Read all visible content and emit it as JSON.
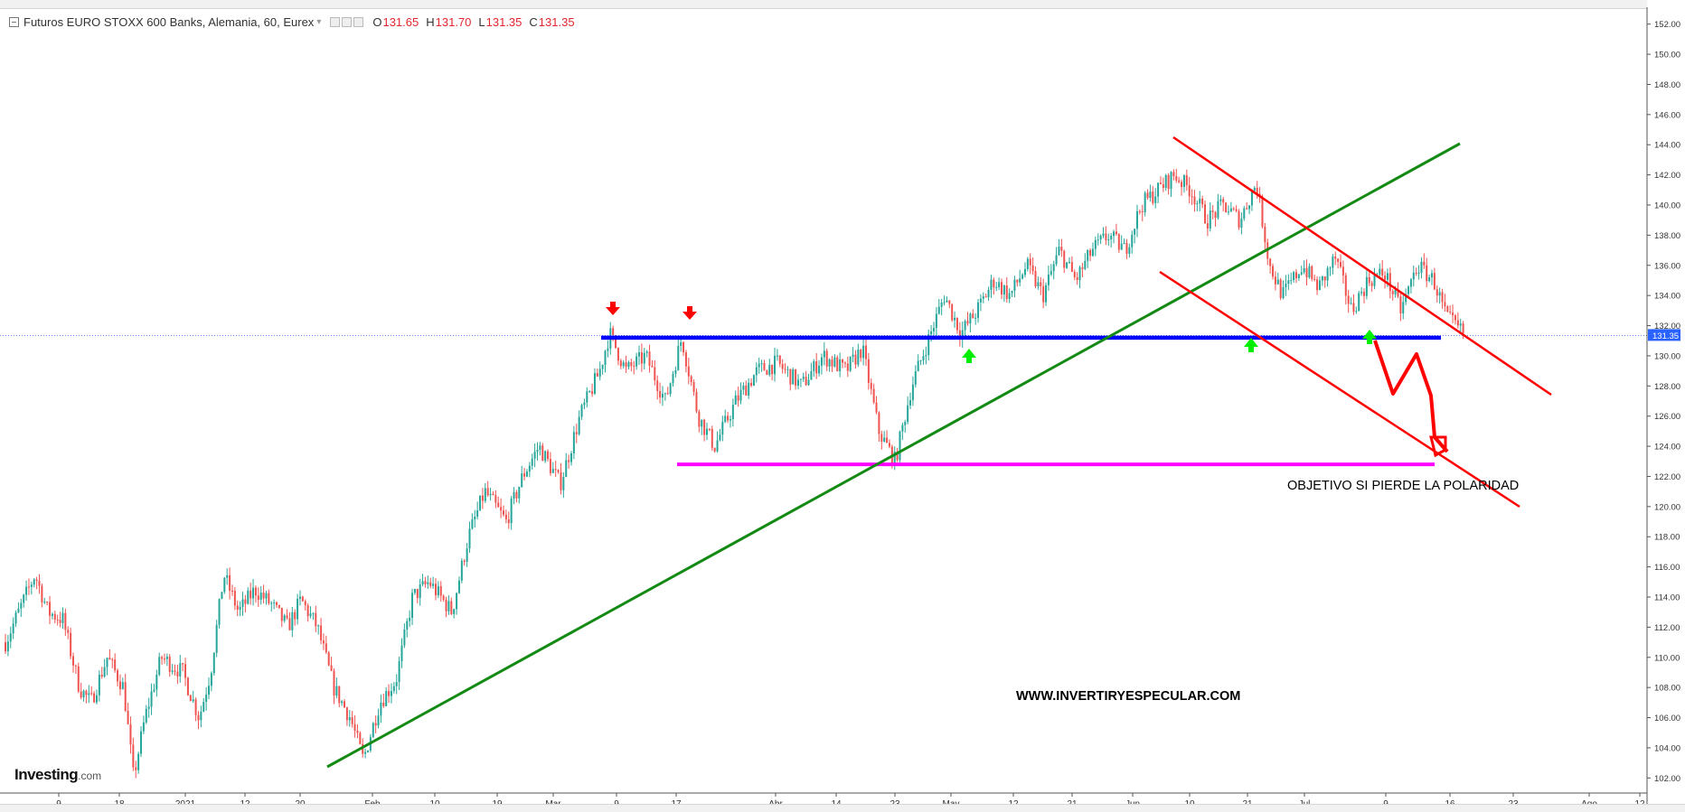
{
  "legend": {
    "title": "Futuros EURO STOXX 600 Banks, Alemania, 60, Eurex",
    "o_key": "O",
    "o_val": "131.65",
    "h_key": "H",
    "h_val": "131.70",
    "l_key": "L",
    "l_val": "131.35",
    "c_key": "C",
    "c_val": "131.35"
  },
  "logo": {
    "main": "Investing",
    "suffix": ".com"
  },
  "annotations": {
    "objective": "OBJETIVO SI PIERDE LA POLARIDAD",
    "website": "WWW.INVERTIRYESPECULAR.COM"
  },
  "colors": {
    "up_candle": "#26a69a",
    "down_candle": "#ef5350",
    "support_line": "#0000ff",
    "target_line": "#ff00ff",
    "trend_line": "#138a13",
    "channel_lines": "#ff0000",
    "price_label_bg": "#2962ff",
    "arrow_down": "#ff0000",
    "arrow_up": "#00ee00"
  },
  "chart_data": {
    "type": "candlestick",
    "title": "Futuros EURO STOXX 600 Banks, Alemania, 60, Eurex",
    "current_price": 131.35,
    "current_price_label": "131.35",
    "ylim": [
      101,
      153
    ],
    "y_ticks": [
      102,
      104,
      106,
      108,
      110,
      112,
      114,
      116,
      118,
      120,
      122,
      124,
      126,
      128,
      130,
      132,
      134,
      136,
      138,
      140,
      142,
      144,
      146,
      148,
      150,
      152
    ],
    "y_tick_labels": [
      "102.00",
      "104.00",
      "106.00",
      "108.00",
      "110.00",
      "112.00",
      "114.00",
      "116.00",
      "118.00",
      "120.00",
      "122.00",
      "124.00",
      "126.00",
      "128.00",
      "130.00",
      "132.00",
      "134.00",
      "136.00",
      "138.00",
      "140.00",
      "142.00",
      "144.00",
      "146.00",
      "148.00",
      "150.00",
      "152.00"
    ],
    "x_tick_labels": [
      "9",
      "18",
      "2021",
      "12",
      "20",
      "Feb",
      "10",
      "19",
      "Mar",
      "9",
      "17",
      "Abr",
      "14",
      "23",
      "May",
      "12",
      "21",
      "Jun",
      "10",
      "21",
      "Jul",
      "9",
      "16",
      "23",
      "Ago",
      "12"
    ],
    "price_path": [
      [
        0,
        111
      ],
      [
        0.008,
        113
      ],
      [
        0.018,
        115.5
      ],
      [
        0.026,
        113
      ],
      [
        0.035,
        112.5
      ],
      [
        0.045,
        108
      ],
      [
        0.052,
        107
      ],
      [
        0.062,
        110
      ],
      [
        0.072,
        108
      ],
      [
        0.078,
        102
      ],
      [
        0.085,
        106
      ],
      [
        0.095,
        110
      ],
      [
        0.108,
        109
      ],
      [
        0.118,
        106
      ],
      [
        0.125,
        109
      ],
      [
        0.133,
        115.5
      ],
      [
        0.142,
        113
      ],
      [
        0.152,
        114.5
      ],
      [
        0.162,
        113.5
      ],
      [
        0.172,
        112
      ],
      [
        0.18,
        113.8
      ],
      [
        0.19,
        112
      ],
      [
        0.2,
        108
      ],
      [
        0.21,
        106
      ],
      [
        0.218,
        103.2
      ],
      [
        0.228,
        107
      ],
      [
        0.238,
        108.5
      ],
      [
        0.248,
        114
      ],
      [
        0.258,
        115
      ],
      [
        0.272,
        113
      ],
      [
        0.282,
        118
      ],
      [
        0.292,
        121
      ],
      [
        0.305,
        119
      ],
      [
        0.315,
        122
      ],
      [
        0.325,
        124
      ],
      [
        0.338,
        121.5
      ],
      [
        0.35,
        126
      ],
      [
        0.362,
        129
      ],
      [
        0.368,
        131.5
      ],
      [
        0.378,
        129
      ],
      [
        0.39,
        130
      ],
      [
        0.402,
        127
      ],
      [
        0.412,
        131.2
      ],
      [
        0.422,
        126
      ],
      [
        0.432,
        124
      ],
      [
        0.445,
        127
      ],
      [
        0.458,
        129
      ],
      [
        0.47,
        129.5
      ],
      [
        0.485,
        128
      ],
      [
        0.498,
        130
      ],
      [
        0.512,
        129
      ],
      [
        0.522,
        130.5
      ],
      [
        0.532,
        125
      ],
      [
        0.542,
        123
      ],
      [
        0.552,
        128
      ],
      [
        0.562,
        131
      ],
      [
        0.572,
        134
      ],
      [
        0.582,
        131.5
      ],
      [
        0.592,
        133
      ],
      [
        0.602,
        135
      ],
      [
        0.612,
        134
      ],
      [
        0.622,
        136
      ],
      [
        0.632,
        134
      ],
      [
        0.642,
        137
      ],
      [
        0.652,
        135
      ],
      [
        0.662,
        137
      ],
      [
        0.672,
        138
      ],
      [
        0.682,
        137
      ],
      [
        0.692,
        140
      ],
      [
        0.702,
        141
      ],
      [
        0.712,
        142
      ],
      [
        0.722,
        141
      ],
      [
        0.732,
        139
      ],
      [
        0.742,
        140
      ],
      [
        0.752,
        139
      ],
      [
        0.762,
        141.5
      ],
      [
        0.77,
        136
      ],
      [
        0.778,
        134
      ],
      [
        0.79,
        136
      ],
      [
        0.8,
        134.5
      ],
      [
        0.81,
        136.5
      ],
      [
        0.82,
        133
      ],
      [
        0.83,
        135
      ],
      [
        0.84,
        135.5
      ],
      [
        0.85,
        133
      ],
      [
        0.86,
        136
      ],
      [
        0.87,
        135
      ],
      [
        0.878,
        132.5
      ],
      [
        0.888,
        131.5
      ]
    ],
    "x_domain": [
      0,
      1
    ],
    "overlays": {
      "support_level": 131.2,
      "target_level": 122.8,
      "arrows_down_at": [
        [
          0.367,
          133.3
        ],
        [
          0.41,
          133.1
        ]
      ],
      "arrows_up_at": [
        [
          0.578,
          129.8
        ],
        [
          0.768,
          129.8
        ],
        [
          0.841,
          130.1
        ]
      ]
    }
  }
}
